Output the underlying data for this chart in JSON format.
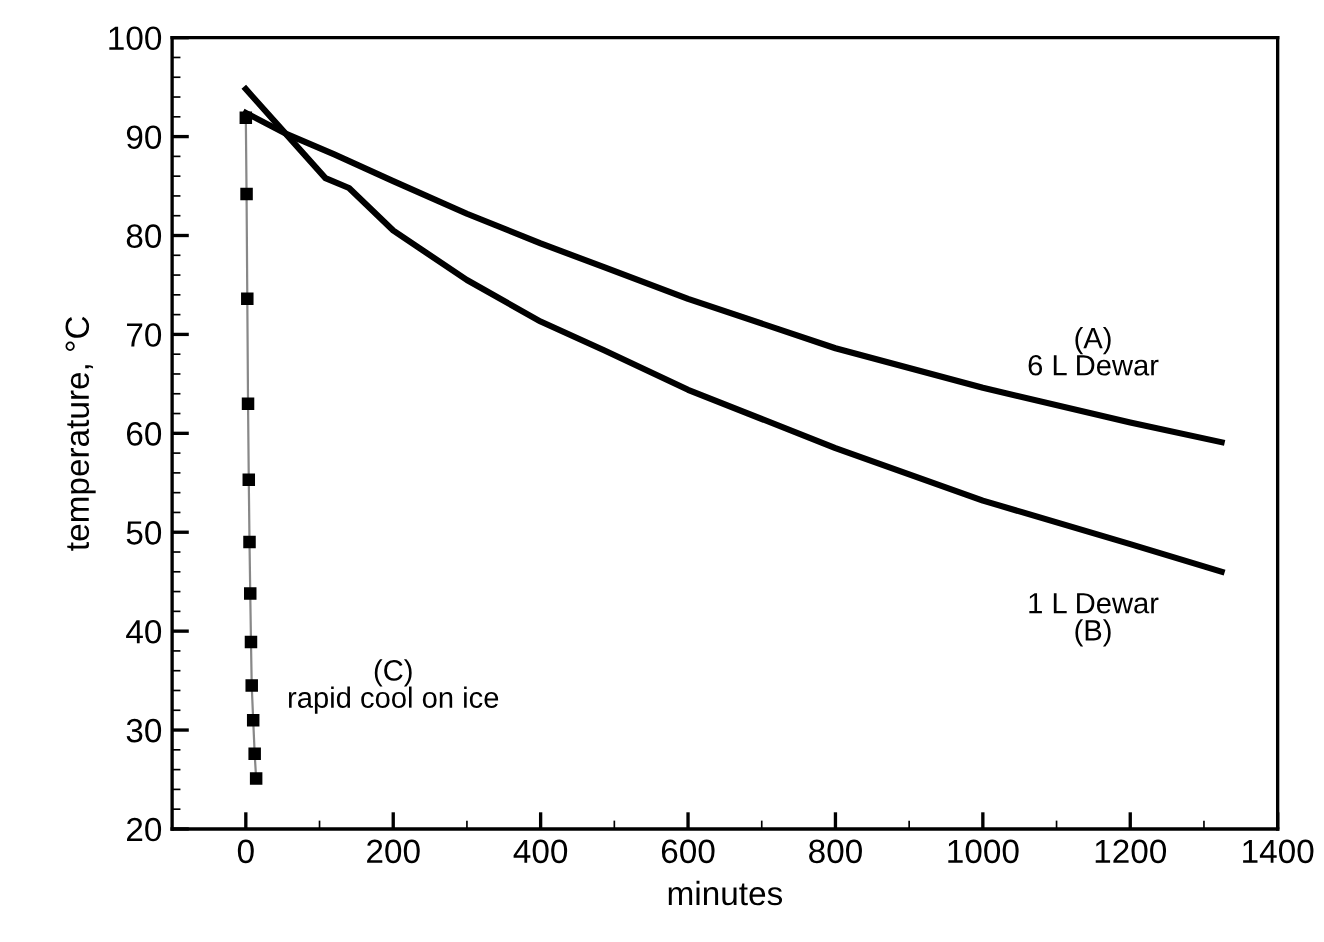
{
  "chart_data": {
    "type": "line",
    "xlabel": "minutes",
    "ylabel": "temperature, °C",
    "xlim": [
      -100,
      1400
    ],
    "xticks": [
      0,
      200,
      400,
      600,
      800,
      1000,
      1200,
      1400
    ],
    "ylim": [
      20,
      100
    ],
    "yticks": [
      20,
      30,
      40,
      50,
      60,
      70,
      80,
      90,
      100
    ],
    "grid": false,
    "legend": false,
    "series": [
      {
        "color": "#000000",
        "marker": "none",
        "x": [
          0,
          54,
          120,
          200,
          300,
          400,
          486,
          600,
          800,
          1000,
          1200,
          1324
        ],
        "values": [
          92.4,
          90.3,
          88.2,
          85.5,
          82.2,
          79.2,
          76.8,
          73.6,
          68.6,
          64.6,
          61.1,
          59.1
        ]
      },
      {
        "color": "#000000",
        "marker": "none",
        "x": [
          0,
          54,
          108,
          140,
          200,
          300,
          400,
          486,
          600,
          800,
          1000,
          1200,
          1324
        ],
        "values": [
          94.8,
          90.3,
          85.8,
          84.8,
          80.5,
          75.5,
          71.3,
          68.4,
          64.4,
          58.5,
          53.2,
          48.8,
          46.0
        ]
      },
      {
        "color": "#000000",
        "marker": "square",
        "x": [
          0,
          1,
          2,
          3,
          4,
          5,
          6,
          7,
          8,
          10,
          12,
          14
        ],
        "values": [
          91.9,
          84.2,
          73.6,
          63.0,
          55.3,
          49.0,
          43.8,
          38.9,
          34.5,
          31.0,
          27.6,
          25.1
        ]
      }
    ],
    "annotations": [
      "(A)\n6 L Dewar",
      "1 L Dewar\n(B)",
      "(C)\nrapid cool on ice"
    ]
  }
}
